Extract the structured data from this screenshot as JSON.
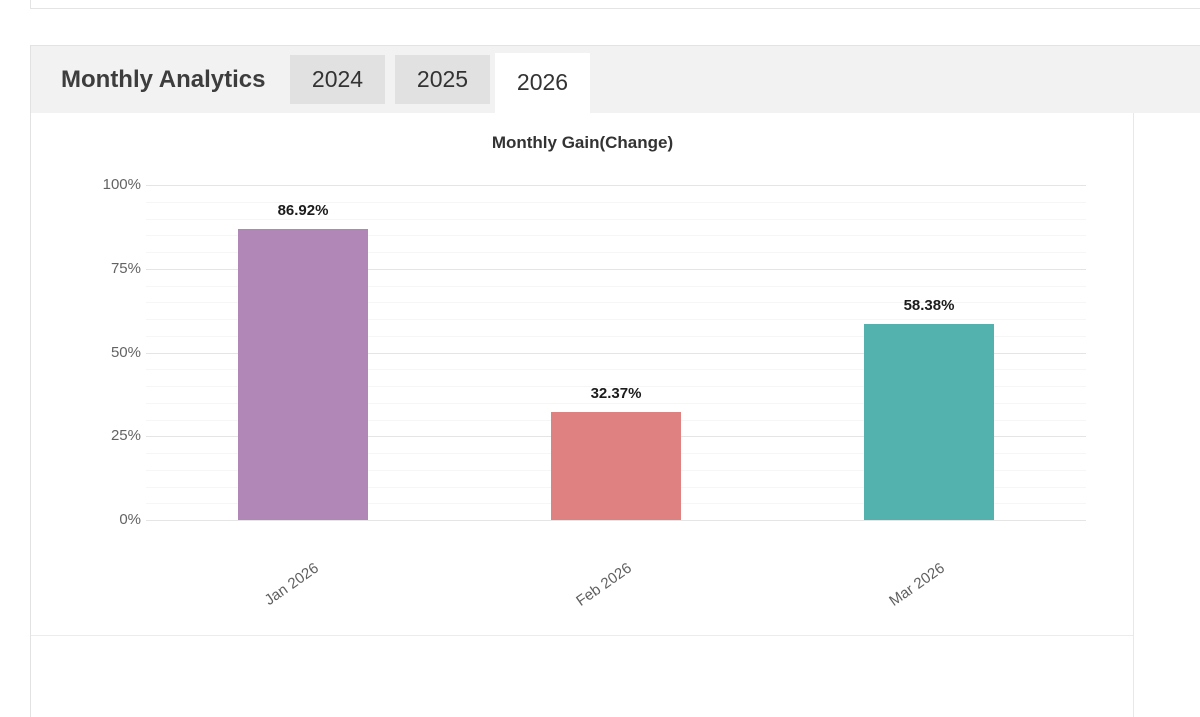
{
  "panel": {
    "title": "Monthly Analytics",
    "tabs": [
      {
        "label": "2024",
        "active": false
      },
      {
        "label": "2025",
        "active": false
      },
      {
        "label": "2026",
        "active": true
      }
    ]
  },
  "chart_data": {
    "type": "bar",
    "title": "Monthly Gain(Change)",
    "categories": [
      "Jan 2026",
      "Feb 2026",
      "Mar 2026"
    ],
    "values": [
      86.92,
      32.37,
      58.38
    ],
    "value_labels": [
      "86.92%",
      "32.37%",
      "58.38%"
    ],
    "bar_colors": [
      "#b187b7",
      "#e08181",
      "#54b2ae"
    ],
    "xlabel": "",
    "ylabel": "",
    "ylim": [
      0,
      100
    ],
    "y_tick_values": [
      0,
      25,
      50,
      75,
      100
    ],
    "y_tick_labels": [
      "0%",
      "25%",
      "50%",
      "75%",
      "100%"
    ],
    "minor_grid_step": 5,
    "grid": true,
    "legend": "none"
  },
  "colors": {
    "header_band": "#f2f2f2",
    "tab_inactive": "#e1e1e1",
    "tab_active": "#ffffff",
    "border": "#e4e4e4",
    "grid_major": "#e5e5e5",
    "grid_minor": "#f6f6f6",
    "title_text": "#3d3d3d",
    "axis_text": "#636363"
  }
}
